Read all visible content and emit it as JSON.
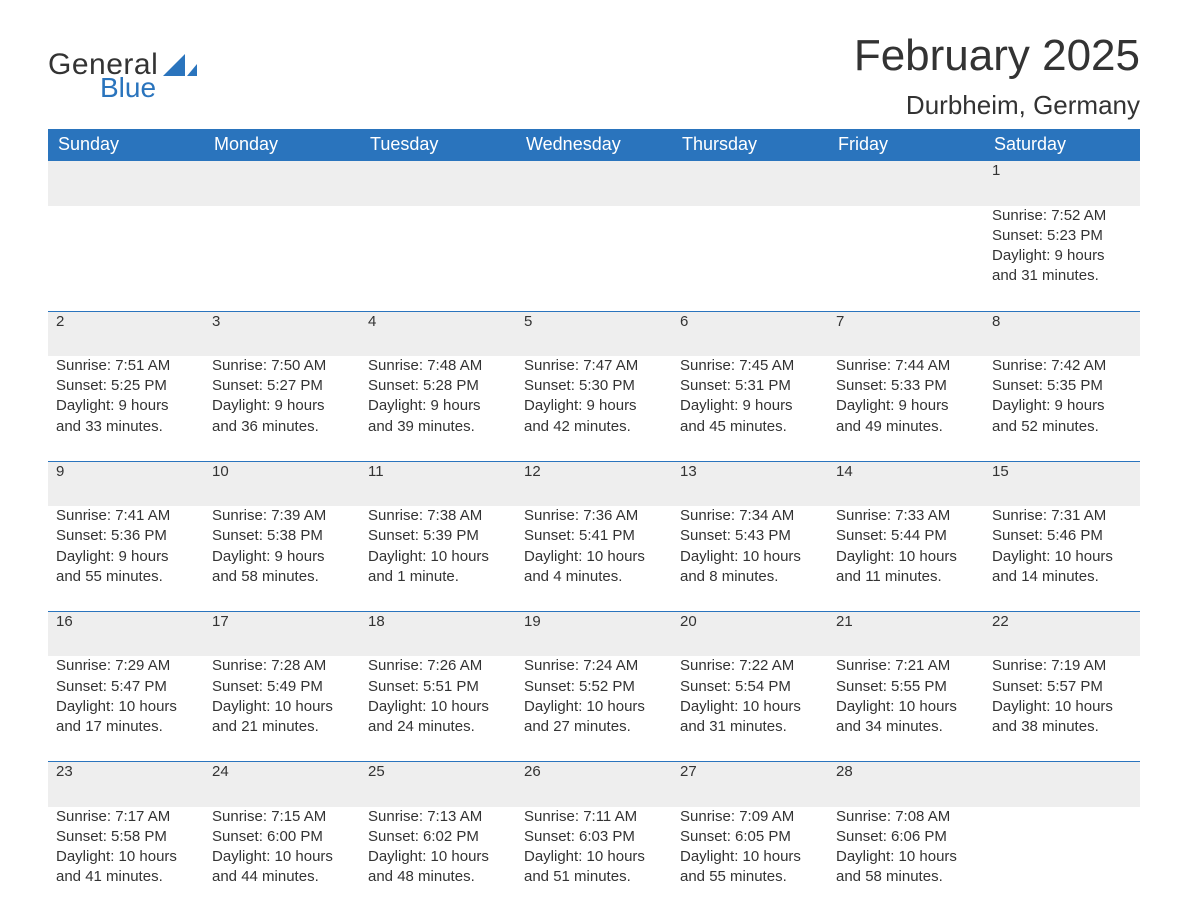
{
  "brand": {
    "line1": "General",
    "line2": "Blue",
    "logo_color": "#2a74bd"
  },
  "title": "February 2025",
  "location": "Durbheim, Germany",
  "colors": {
    "header_bg": "#2a74bd",
    "header_text": "#ffffff",
    "day_bg": "#eeeeee",
    "border": "#2a74bd",
    "text": "#333333",
    "background": "#ffffff"
  },
  "typography": {
    "title_fontsize_pt": 33,
    "location_fontsize_pt": 20,
    "weekday_fontsize_pt": 14,
    "daynum_fontsize_pt": 14,
    "body_fontsize_pt": 11,
    "font_family": "Arial"
  },
  "weekdays": [
    "Sunday",
    "Monday",
    "Tuesday",
    "Wednesday",
    "Thursday",
    "Friday",
    "Saturday"
  ],
  "weeks": [
    [
      null,
      null,
      null,
      null,
      null,
      null,
      {
        "day": "1",
        "sunrise": "Sunrise: 7:52 AM",
        "sunset": "Sunset: 5:23 PM",
        "daylight": "Daylight: 9 hours and 31 minutes."
      }
    ],
    [
      {
        "day": "2",
        "sunrise": "Sunrise: 7:51 AM",
        "sunset": "Sunset: 5:25 PM",
        "daylight": "Daylight: 9 hours and 33 minutes."
      },
      {
        "day": "3",
        "sunrise": "Sunrise: 7:50 AM",
        "sunset": "Sunset: 5:27 PM",
        "daylight": "Daylight: 9 hours and 36 minutes."
      },
      {
        "day": "4",
        "sunrise": "Sunrise: 7:48 AM",
        "sunset": "Sunset: 5:28 PM",
        "daylight": "Daylight: 9 hours and 39 minutes."
      },
      {
        "day": "5",
        "sunrise": "Sunrise: 7:47 AM",
        "sunset": "Sunset: 5:30 PM",
        "daylight": "Daylight: 9 hours and 42 minutes."
      },
      {
        "day": "6",
        "sunrise": "Sunrise: 7:45 AM",
        "sunset": "Sunset: 5:31 PM",
        "daylight": "Daylight: 9 hours and 45 minutes."
      },
      {
        "day": "7",
        "sunrise": "Sunrise: 7:44 AM",
        "sunset": "Sunset: 5:33 PM",
        "daylight": "Daylight: 9 hours and 49 minutes."
      },
      {
        "day": "8",
        "sunrise": "Sunrise: 7:42 AM",
        "sunset": "Sunset: 5:35 PM",
        "daylight": "Daylight: 9 hours and 52 minutes."
      }
    ],
    [
      {
        "day": "9",
        "sunrise": "Sunrise: 7:41 AM",
        "sunset": "Sunset: 5:36 PM",
        "daylight": "Daylight: 9 hours and 55 minutes."
      },
      {
        "day": "10",
        "sunrise": "Sunrise: 7:39 AM",
        "sunset": "Sunset: 5:38 PM",
        "daylight": "Daylight: 9 hours and 58 minutes."
      },
      {
        "day": "11",
        "sunrise": "Sunrise: 7:38 AM",
        "sunset": "Sunset: 5:39 PM",
        "daylight": "Daylight: 10 hours and 1 minute."
      },
      {
        "day": "12",
        "sunrise": "Sunrise: 7:36 AM",
        "sunset": "Sunset: 5:41 PM",
        "daylight": "Daylight: 10 hours and 4 minutes."
      },
      {
        "day": "13",
        "sunrise": "Sunrise: 7:34 AM",
        "sunset": "Sunset: 5:43 PM",
        "daylight": "Daylight: 10 hours and 8 minutes."
      },
      {
        "day": "14",
        "sunrise": "Sunrise: 7:33 AM",
        "sunset": "Sunset: 5:44 PM",
        "daylight": "Daylight: 10 hours and 11 minutes."
      },
      {
        "day": "15",
        "sunrise": "Sunrise: 7:31 AM",
        "sunset": "Sunset: 5:46 PM",
        "daylight": "Daylight: 10 hours and 14 minutes."
      }
    ],
    [
      {
        "day": "16",
        "sunrise": "Sunrise: 7:29 AM",
        "sunset": "Sunset: 5:47 PM",
        "daylight": "Daylight: 10 hours and 17 minutes."
      },
      {
        "day": "17",
        "sunrise": "Sunrise: 7:28 AM",
        "sunset": "Sunset: 5:49 PM",
        "daylight": "Daylight: 10 hours and 21 minutes."
      },
      {
        "day": "18",
        "sunrise": "Sunrise: 7:26 AM",
        "sunset": "Sunset: 5:51 PM",
        "daylight": "Daylight: 10 hours and 24 minutes."
      },
      {
        "day": "19",
        "sunrise": "Sunrise: 7:24 AM",
        "sunset": "Sunset: 5:52 PM",
        "daylight": "Daylight: 10 hours and 27 minutes."
      },
      {
        "day": "20",
        "sunrise": "Sunrise: 7:22 AM",
        "sunset": "Sunset: 5:54 PM",
        "daylight": "Daylight: 10 hours and 31 minutes."
      },
      {
        "day": "21",
        "sunrise": "Sunrise: 7:21 AM",
        "sunset": "Sunset: 5:55 PM",
        "daylight": "Daylight: 10 hours and 34 minutes."
      },
      {
        "day": "22",
        "sunrise": "Sunrise: 7:19 AM",
        "sunset": "Sunset: 5:57 PM",
        "daylight": "Daylight: 10 hours and 38 minutes."
      }
    ],
    [
      {
        "day": "23",
        "sunrise": "Sunrise: 7:17 AM",
        "sunset": "Sunset: 5:58 PM",
        "daylight": "Daylight: 10 hours and 41 minutes."
      },
      {
        "day": "24",
        "sunrise": "Sunrise: 7:15 AM",
        "sunset": "Sunset: 6:00 PM",
        "daylight": "Daylight: 10 hours and 44 minutes."
      },
      {
        "day": "25",
        "sunrise": "Sunrise: 7:13 AM",
        "sunset": "Sunset: 6:02 PM",
        "daylight": "Daylight: 10 hours and 48 minutes."
      },
      {
        "day": "26",
        "sunrise": "Sunrise: 7:11 AM",
        "sunset": "Sunset: 6:03 PM",
        "daylight": "Daylight: 10 hours and 51 minutes."
      },
      {
        "day": "27",
        "sunrise": "Sunrise: 7:09 AM",
        "sunset": "Sunset: 6:05 PM",
        "daylight": "Daylight: 10 hours and 55 minutes."
      },
      {
        "day": "28",
        "sunrise": "Sunrise: 7:08 AM",
        "sunset": "Sunset: 6:06 PM",
        "daylight": "Daylight: 10 hours and 58 minutes."
      },
      null
    ]
  ]
}
